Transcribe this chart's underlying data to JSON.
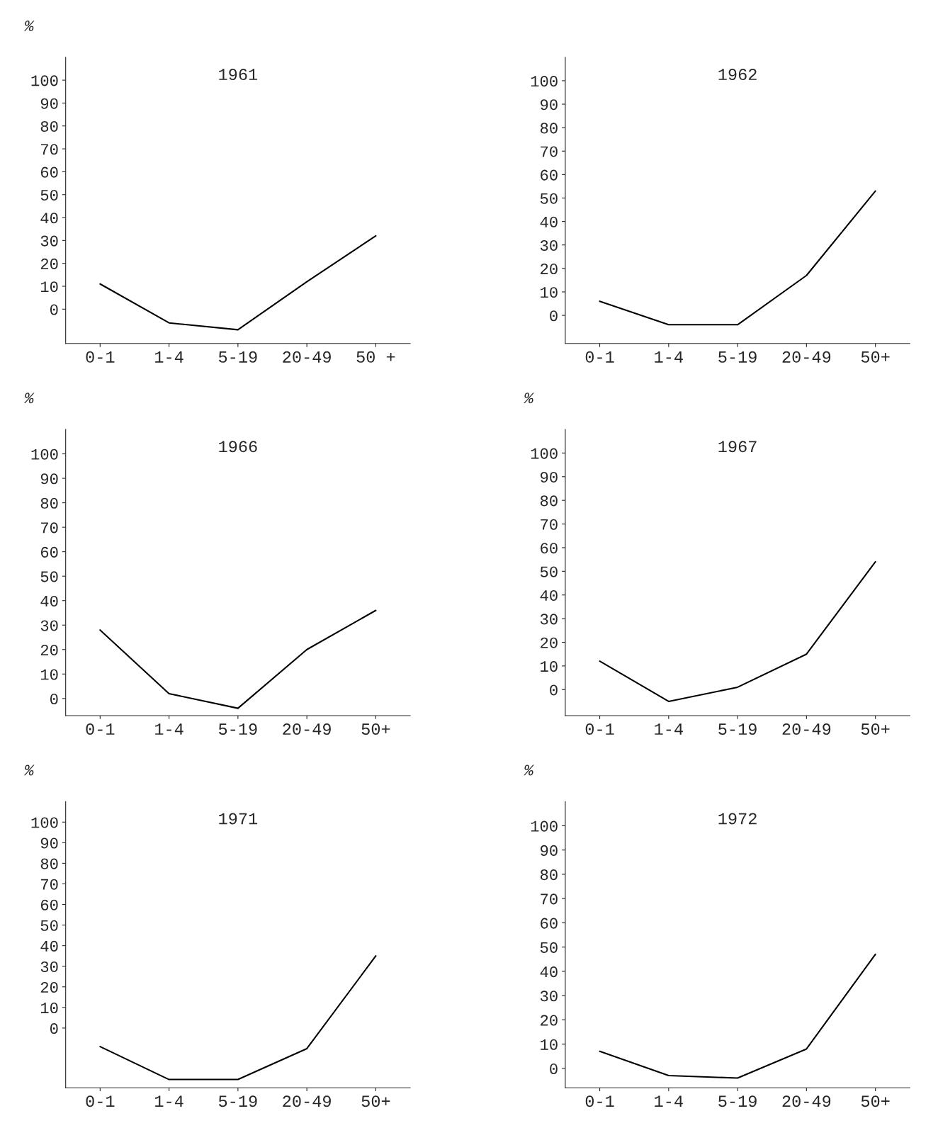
{
  "chart_data": [
    {
      "type": "line",
      "title": "1961",
      "ylabel": "%",
      "categories": [
        "0-1",
        "1-4",
        "5-19",
        "20-49",
        "50 +"
      ],
      "values": [
        11,
        -6,
        -9,
        12,
        32
      ],
      "color": "#000000",
      "ylim": [
        -15,
        110
      ],
      "yticks": [
        0,
        10,
        20,
        30,
        40,
        50,
        60,
        70,
        80,
        90,
        100
      ],
      "grid": false,
      "legend": false,
      "marker": "none"
    },
    {
      "type": "line",
      "title": "1962",
      "categories": [
        "0-1",
        "1-4",
        "5-19",
        "20-49",
        "50+"
      ],
      "values": [
        6,
        -4,
        -4,
        17,
        53
      ],
      "color": "#000000",
      "ylim": [
        -12,
        110
      ],
      "yticks": [
        0,
        10,
        20,
        30,
        40,
        50,
        60,
        70,
        80,
        90,
        100
      ],
      "grid": false,
      "legend": false,
      "marker": "none"
    },
    {
      "type": "line",
      "title": "1966",
      "ylabel": "%",
      "categories": [
        "0-1",
        "1-4",
        "5-19",
        "20-49",
        "50+"
      ],
      "values": [
        28,
        2,
        -4,
        20,
        36
      ],
      "color": "#000000",
      "ylim": [
        -7,
        110
      ],
      "yticks": [
        0,
        10,
        20,
        30,
        40,
        50,
        60,
        70,
        80,
        90,
        100
      ],
      "grid": false,
      "legend": false,
      "marker": "none"
    },
    {
      "type": "line",
      "title": "1967",
      "ylabel": "%",
      "categories": [
        "0-1",
        "1-4",
        "5-19",
        "20-49",
        "50+"
      ],
      "values": [
        12,
        -5,
        1,
        15,
        54
      ],
      "color": "#000000",
      "ylim": [
        -11,
        110
      ],
      "yticks": [
        0,
        10,
        20,
        30,
        40,
        50,
        60,
        70,
        80,
        90,
        100
      ],
      "grid": false,
      "legend": false,
      "marker": "none"
    },
    {
      "type": "line",
      "title": "1971",
      "ylabel": "%",
      "categories": [
        "0-1",
        "1-4",
        "5-19",
        "20-49",
        "50+"
      ],
      "values": [
        -9,
        -25,
        -25,
        -10,
        35
      ],
      "color": "#000000",
      "ylim": [
        -29,
        110
      ],
      "yticks": [
        0,
        10,
        20,
        30,
        40,
        50,
        60,
        70,
        80,
        90,
        100
      ],
      "grid": false,
      "legend": false,
      "marker": "none"
    },
    {
      "type": "line",
      "title": "1972",
      "ylabel": "%",
      "categories": [
        "0-1",
        "1-4",
        "5-19",
        "20-49",
        "50+"
      ],
      "values": [
        7,
        -3,
        -4,
        8,
        47
      ],
      "color": "#000000",
      "ylim": [
        -8,
        110
      ],
      "yticks": [
        0,
        10,
        20,
        30,
        40,
        50,
        60,
        70,
        80,
        90,
        100
      ],
      "grid": false,
      "legend": false,
      "marker": "none"
    }
  ]
}
